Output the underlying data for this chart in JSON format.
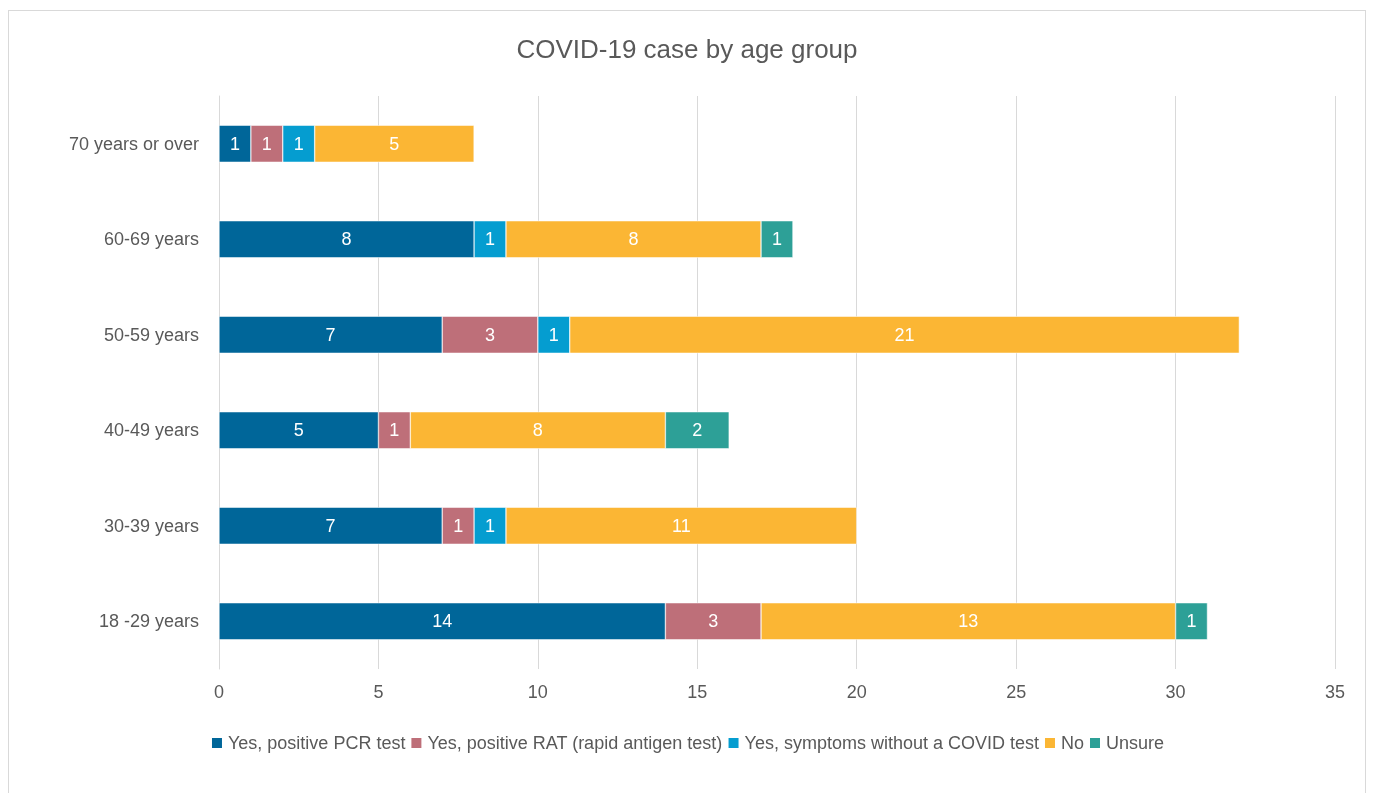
{
  "chart_data": {
    "type": "bar",
    "orientation": "horizontal",
    "stacked": true,
    "title": "COVID-19 case by age group",
    "categories": [
      "70 years or over",
      "60-69 years",
      "50-59 years",
      "40-49 years",
      "30-39 years",
      "18 -29 years"
    ],
    "series": [
      {
        "name": "Yes, positive PCR test",
        "color": "#006699",
        "values": [
          1,
          8,
          7,
          5,
          7,
          14
        ]
      },
      {
        "name": "Yes, positive RAT (rapid antigen test)",
        "color": "#be6f79",
        "values": [
          1,
          null,
          3,
          1,
          1,
          3
        ]
      },
      {
        "name": "Yes, symptoms without a COVID test",
        "color": "#059dd0",
        "values": [
          1,
          1,
          1,
          null,
          1,
          null
        ]
      },
      {
        "name": "No",
        "color": "#fbb634",
        "values": [
          5,
          8,
          21,
          8,
          11,
          13
        ]
      },
      {
        "name": "Unsure",
        "color": "#2da097",
        "values": [
          null,
          1,
          null,
          2,
          null,
          1
        ]
      }
    ],
    "xlim": [
      0,
      35
    ],
    "xticks": [
      0,
      5,
      10,
      15,
      20,
      25,
      30,
      35
    ],
    "grid": "x",
    "legend": "bottom",
    "data_labels": true
  }
}
